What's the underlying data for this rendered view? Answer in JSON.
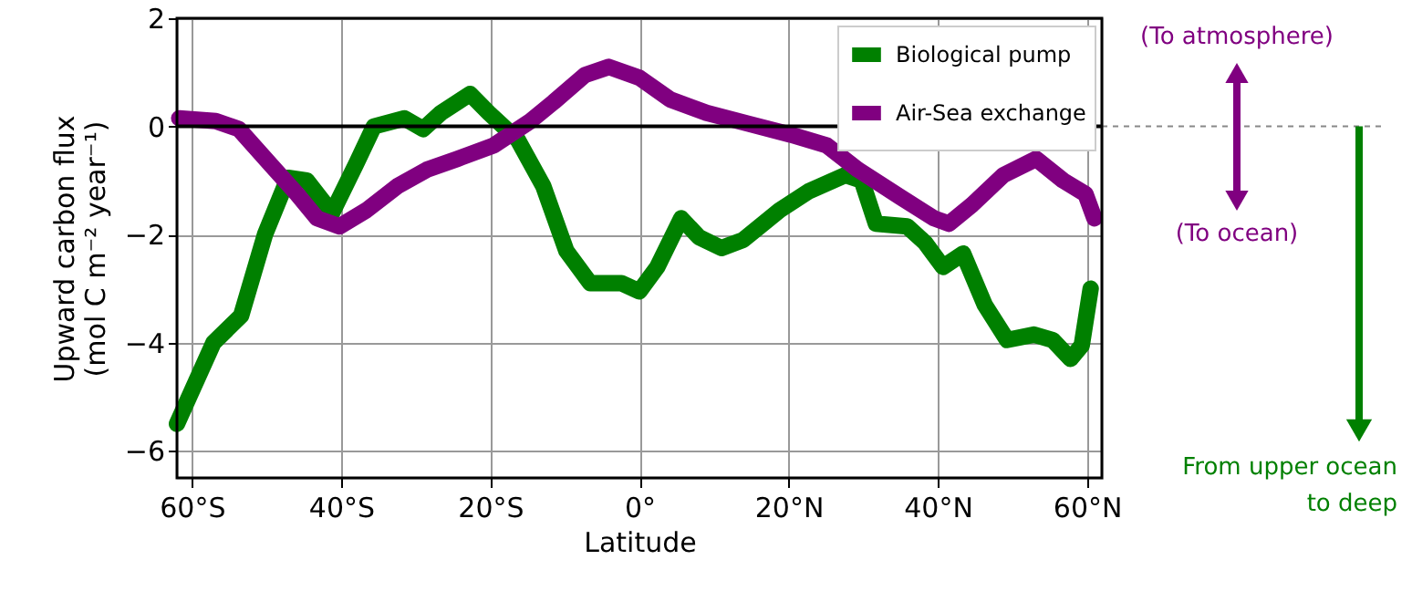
{
  "chart_data": {
    "type": "line",
    "xlabel": "Latitude",
    "ylabel": "Upward carbon flux\n(mol C m⁻² year⁻¹)",
    "xlim": [
      -62,
      62
    ],
    "ylim": [
      -6.5,
      2
    ],
    "xticks": [
      {
        "value": -60,
        "label": "60°S"
      },
      {
        "value": -40,
        "label": "40°S"
      },
      {
        "value": -20,
        "label": "20°S"
      },
      {
        "value": 0,
        "label": "0°"
      },
      {
        "value": 20,
        "label": "20°N"
      },
      {
        "value": 40,
        "label": "40°N"
      },
      {
        "value": 60,
        "label": "60°N"
      }
    ],
    "yticks": [
      -6,
      -4,
      -2,
      0,
      2
    ],
    "grid": true,
    "legend": "top right",
    "line_style": "solid",
    "marker": "none",
    "ref_lines": [
      {
        "axis": "y",
        "value": 0,
        "color": "#000000"
      }
    ],
    "annotations": [
      "(To atmosphere)",
      "(To ocean)",
      "From upper ocean\nto deep"
    ],
    "series": [
      {
        "name": "Biological pump",
        "color": "#008000",
        "x": [
          -62,
          -57.1,
          -53.4,
          -50.2,
          -47.1,
          -44.6,
          -41.2,
          -38,
          -35.6,
          -31.5,
          -29,
          -26.6,
          -22.7,
          -20.2,
          -16.3,
          -12.9,
          -9.8,
          -6.6,
          -2.4,
          0,
          2.4,
          5.6,
          8,
          11,
          13.9,
          18.8,
          22.7,
          27.6,
          29.8,
          31.7,
          35.9,
          38.3,
          40.7,
          43.4,
          46.3,
          49.3,
          52.9,
          55.4,
          57.8,
          59.3,
          60.5
        ],
        "values": [
          -5.5,
          -4.0,
          -3.5,
          -2.0,
          -0.95,
          -1.0,
          -1.6,
          -0.7,
          0.0,
          0.15,
          -0.05,
          0.25,
          0.6,
          0.25,
          -0.25,
          -1.1,
          -2.3,
          -2.9,
          -2.9,
          -3.05,
          -2.6,
          -1.7,
          -2.05,
          -2.25,
          -2.1,
          -1.55,
          -1.2,
          -0.9,
          -1.0,
          -1.8,
          -1.85,
          -2.15,
          -2.6,
          -2.35,
          -3.3,
          -3.95,
          -3.85,
          -3.95,
          -4.3,
          -4.05,
          -3.0
        ]
      },
      {
        "name": "Air-Sea exchange",
        "color": "#800080",
        "x": [
          -61.7,
          -56.8,
          -53.7,
          -49.5,
          -45.9,
          -43.2,
          -40.2,
          -36.6,
          -32.4,
          -28.5,
          -24.4,
          -19.5,
          -14.6,
          -11.5,
          -7.3,
          -4.1,
          0,
          4.1,
          9,
          14.6,
          20.2,
          25.1,
          29.3,
          34.9,
          39.5,
          41.5,
          44.6,
          48.8,
          53.2,
          56.8,
          59.8,
          61
        ],
        "values": [
          0.15,
          0.1,
          -0.05,
          -0.7,
          -1.25,
          -1.7,
          -1.85,
          -1.55,
          -1.1,
          -0.8,
          -0.6,
          -0.35,
          0.1,
          0.45,
          0.95,
          1.1,
          0.9,
          0.5,
          0.25,
          0.05,
          -0.15,
          -0.35,
          -0.8,
          -1.3,
          -1.7,
          -1.8,
          -1.45,
          -0.9,
          -0.6,
          -1.0,
          -1.25,
          -1.7
        ]
      }
    ]
  }
}
